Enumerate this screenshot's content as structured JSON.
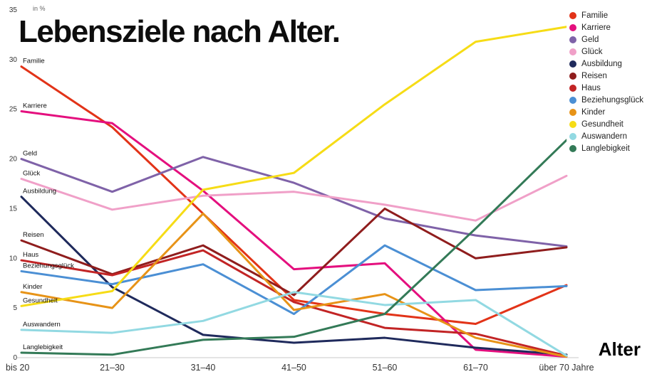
{
  "page": {
    "background": "#ffffff"
  },
  "chart_data": {
    "type": "line",
    "title": "Lebensziele nach Alter.",
    "unit_label": "in %",
    "x_axis_title": "Alter",
    "ylim": [
      0,
      35
    ],
    "yticks": [
      0,
      5,
      10,
      15,
      20,
      25,
      30,
      35
    ],
    "categories": [
      "bis 20",
      "21–30",
      "31–40",
      "41–50",
      "51–60",
      "61–70",
      "über 70 Jahre"
    ],
    "grid": false,
    "legend_position": "top-right",
    "axis_color": "#c8c8c8",
    "series": [
      {
        "name": "Familie",
        "color": "#e23318",
        "values": [
          29.3,
          23.2,
          14.5,
          5.8,
          4.4,
          3.4,
          7.3
        ]
      },
      {
        "name": "Karriere",
        "color": "#e40f7e",
        "values": [
          24.8,
          23.6,
          16.8,
          8.9,
          9.5,
          0.8,
          0.1
        ]
      },
      {
        "name": "Geld",
        "color": "#7f62a8",
        "values": [
          20.0,
          16.7,
          20.2,
          17.6,
          14.0,
          12.3,
          11.2
        ]
      },
      {
        "name": "Glück",
        "color": "#f0a0c8",
        "values": [
          18.0,
          14.9,
          16.3,
          16.7,
          15.4,
          13.8,
          18.3
        ]
      },
      {
        "name": "Ausbildung",
        "color": "#1f2a5c",
        "values": [
          16.2,
          7.1,
          2.3,
          1.5,
          2.0,
          1.0,
          0.3
        ]
      },
      {
        "name": "Reisen",
        "color": "#8f1d1d",
        "values": [
          11.8,
          8.4,
          11.3,
          6.3,
          15.0,
          10.0,
          11.1
        ]
      },
      {
        "name": "Haus",
        "color": "#c22425",
        "values": [
          9.8,
          8.3,
          10.8,
          5.6,
          3.0,
          2.4,
          0.2
        ]
      },
      {
        "name": "Beziehungsglück",
        "color": "#4b8fd4",
        "values": [
          8.7,
          7.4,
          9.4,
          4.4,
          11.3,
          6.8,
          7.2
        ]
      },
      {
        "name": "Kinder",
        "color": "#e79317",
        "values": [
          6.6,
          5.0,
          14.5,
          4.8,
          6.4,
          2.0,
          0.1
        ]
      },
      {
        "name": "Gesundheit",
        "color": "#f6dc16",
        "values": [
          5.2,
          6.7,
          16.9,
          18.6,
          25.5,
          31.8,
          33.3
        ]
      },
      {
        "name": "Auswandern",
        "color": "#92d9e2",
        "values": [
          2.8,
          2.5,
          3.7,
          6.6,
          5.3,
          5.8,
          0.2
        ]
      },
      {
        "name": "Langlebigkeit",
        "color": "#337a57",
        "values": [
          0.5,
          0.3,
          1.8,
          2.1,
          4.4,
          13.0,
          21.9
        ]
      }
    ]
  }
}
